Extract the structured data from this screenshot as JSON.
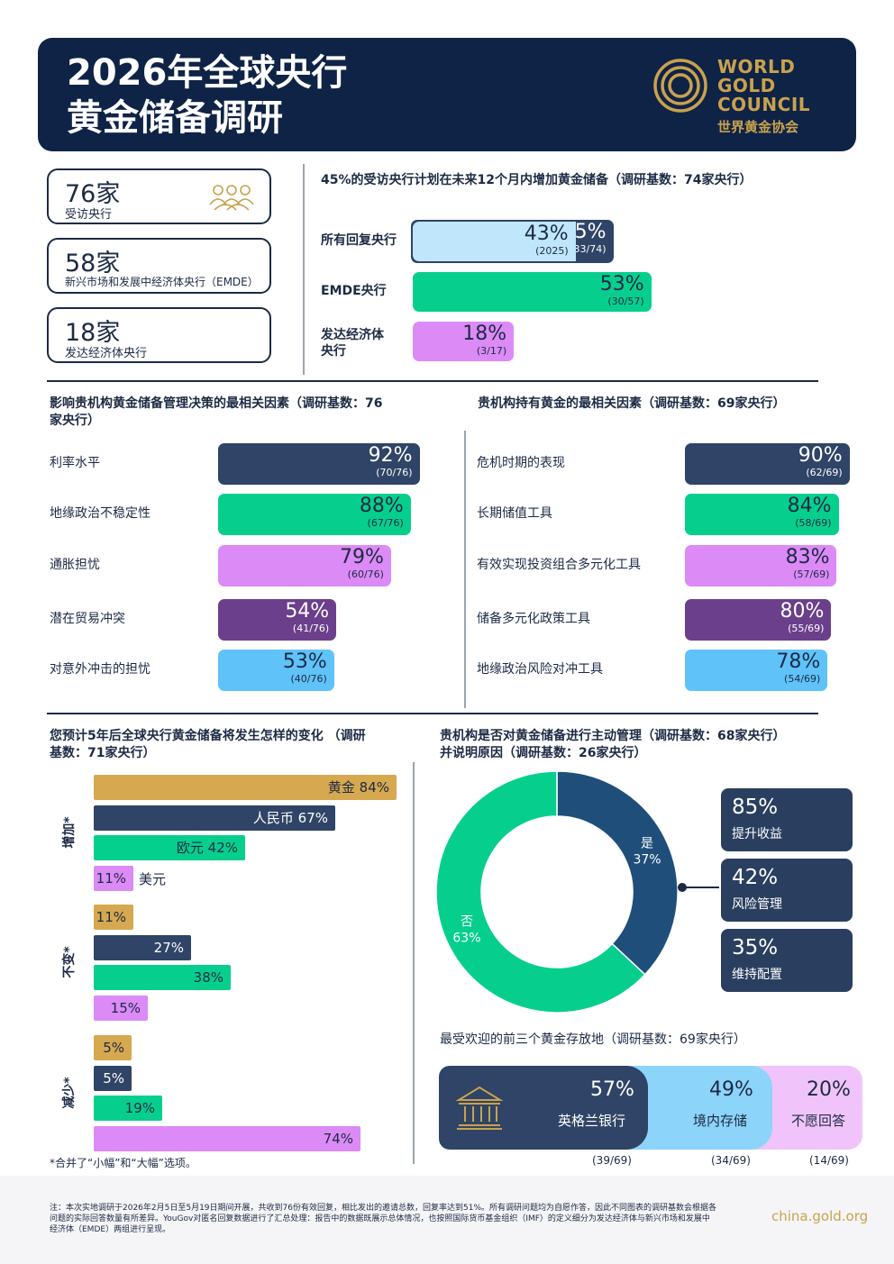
{
  "header": {
    "title_line1": "2026年全球央行",
    "title_line2": "黄金储备调研",
    "logo_line1": "WORLD",
    "logo_line2": "GOLD",
    "logo_line3": "COUNCIL",
    "logo_cn": "世界黄金协会"
  },
  "stats": [
    {
      "value": "76家",
      "label": "受访央行"
    },
    {
      "value": "58家",
      "label": "新兴市场和发展中经济体央行（EMDE）"
    },
    {
      "value": "18家",
      "label": "发达经济体央行"
    }
  ],
  "colors": {
    "navy": "#2f4466",
    "green": "#06cf8d",
    "pink": "#dc8af6",
    "purple": "#6b3f8c",
    "skyblue": "#5fc2f8",
    "lightblue": "#bfe6fa",
    "gold": "#d6a84f",
    "donut_blue": "#1f4e7a"
  },
  "chart_data": [
    {
      "type": "bar",
      "title": "45%的受访央行计划在未来12个月内增加黄金储备（调研基数：74家央行）",
      "categories": [
        "所有回复央行",
        "EMDE央行",
        "发达经济体央行"
      ],
      "series": [
        {
          "name": "2025",
          "values": [
            43,
            null,
            null
          ],
          "labels": [
            "43%",
            "",
            ""
          ],
          "subs": [
            "(2025)",
            "",
            ""
          ]
        },
        {
          "values": [
            45,
            53,
            18
          ],
          "labels": [
            "45%",
            "53%",
            "18%"
          ],
          "subs": [
            "(33/74)",
            "(30/57)",
            "(3/17)"
          ]
        }
      ],
      "xlim": [
        0,
        100
      ]
    },
    {
      "type": "bar",
      "title": "影响贵机构黄金储备管理决策的最相关因素（调研基数：76家央行）",
      "categories": [
        "利率水平",
        "地缘政治不稳定性",
        "通胀担忧",
        "潜在贸易冲突",
        "对意外冲击的担忧"
      ],
      "values": [
        92,
        88,
        79,
        54,
        53
      ],
      "labels": [
        "92%",
        "88%",
        "79%",
        "54%",
        "53%"
      ],
      "subs": [
        "(70/76)",
        "(67/76)",
        "(60/76)",
        "(41/76)",
        "(40/76)"
      ],
      "xlim": [
        0,
        100
      ]
    },
    {
      "type": "bar",
      "title": "贵机构持有黄金的最相关因素（调研基数：69家央行）",
      "categories": [
        "危机时期的表现",
        "长期储值工具",
        "有效实现投资组合多元化工具",
        "储备多元化政策工具",
        "地缘政治风险对冲工具"
      ],
      "values": [
        90,
        84,
        83,
        80,
        78
      ],
      "labels": [
        "90%",
        "84%",
        "83%",
        "80%",
        "78%"
      ],
      "subs": [
        "(62/69)",
        "(58/69)",
        "(57/69)",
        "(55/69)",
        "(54/69)"
      ],
      "xlim": [
        0,
        100
      ]
    },
    {
      "type": "bar",
      "title": "您预计5年后全球央行黄金储备将发生怎样的变化（调研基数：71家央行）",
      "groups": [
        "增加*",
        "不变*",
        "减少*"
      ],
      "series": [
        {
          "name": "黄金",
          "values": [
            84,
            11,
            5
          ]
        },
        {
          "name": "人民币",
          "values": [
            67,
            27,
            5
          ]
        },
        {
          "name": "欧元",
          "values": [
            42,
            38,
            19
          ]
        },
        {
          "name": "美元",
          "values": [
            11,
            15,
            74
          ]
        }
      ],
      "labels": {
        "increase": [
          "黄金 84%",
          "人民币 67%",
          "欧元 42%",
          "11%"
        ],
        "increase_usd_name": "美元",
        "unchanged": [
          "11%",
          "27%",
          "38%",
          "15%"
        ],
        "decrease": [
          "5%",
          "5%",
          "19%",
          "74%"
        ]
      },
      "xlim": [
        0,
        100
      ],
      "note": "*合并了“小幅”和“大幅”选项。"
    },
    {
      "type": "pie",
      "title": "贵机构是否对黄金储备进行主动管理（调研基数：68家央行）并说明原因（调研基数：26家央行）",
      "categories": [
        "是",
        "否"
      ],
      "values": [
        37,
        63
      ],
      "labels": [
        "37%",
        "63%"
      ]
    },
    {
      "type": "bar",
      "title": "最受欢迎的前三个黄金存放地（调研基数：69家央行）",
      "categories": [
        "英格兰银行",
        "境内存储",
        "不愿回答"
      ],
      "values": [
        57,
        49,
        20
      ],
      "labels": [
        "57%",
        "49%",
        "20%"
      ],
      "subs": [
        "(39/69)",
        "(34/69)",
        "(14/69)"
      ]
    }
  ],
  "reasons": [
    {
      "value": "85%",
      "label": "提升收益"
    },
    {
      "value": "42%",
      "label": "风险管理"
    },
    {
      "value": "35%",
      "label": "维持配置"
    }
  ],
  "top_chart_label_dev": [
    "发达经济体",
    "央行"
  ],
  "factors_title_lines": [
    "影响贵机构黄金储备管理决策的最相关因素（调研基数：76",
    "家央行）"
  ],
  "change_title_lines": [
    "您预计5年后全球央行黄金储备将发生怎样的变化 （调研",
    "基数：71家央行）"
  ],
  "active_title_lines": [
    "贵机构是否对黄金储备进行主动管理（调研基数：68家央行）",
    "并说明原因（调研基数：26家央行）"
  ],
  "footer": {
    "note": "注：本次实地调研于2026年2月5日至5月19日期间开展，共收到76份有效回复，相比发出的邀请总数，回复率达到51%。所有调研问题均为自愿作答，因此不同图表的调研基数会根据各问题的实际回答数量有所差异。YouGov对匿名回复数据进行了汇总处理：报告中的数据既展示总体情况，也按照国际货币基金组织（IMF）的定义细分为发达经济体与新兴市场和发展中经济体（EMDE）两组进行呈现。",
    "website": "china.gold.org"
  }
}
